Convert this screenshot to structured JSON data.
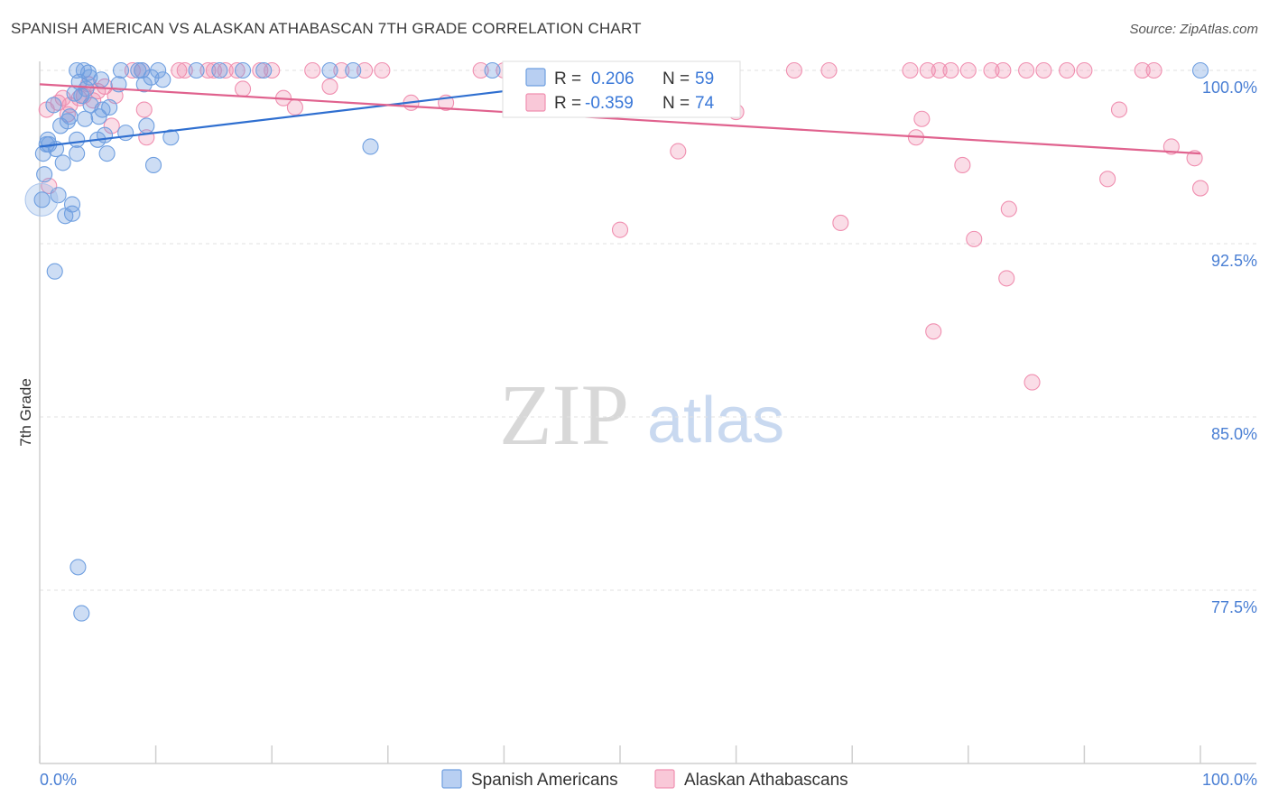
{
  "header": {
    "title": "SPANISH AMERICAN VS ALASKAN ATHABASCAN 7TH GRADE CORRELATION CHART",
    "source": "Source: ZipAtlas.com"
  },
  "watermark": {
    "zip": "ZIP",
    "atlas": "atlas"
  },
  "legend_box": {
    "rows": [
      {
        "r_label": "R =",
        "r_value": "0.206",
        "n_label": "N =",
        "n_value": "59",
        "color": "#6f9fe0"
      },
      {
        "r_label": "R =",
        "r_value": "-0.359",
        "n_label": "N =",
        "n_value": "74",
        "color": "#f08fb0"
      }
    ]
  },
  "bottom_legend": [
    "Spanish Americans",
    "Alaskan Athabascans"
  ],
  "chart_data": {
    "type": "scatter",
    "title": "SPANISH AMERICAN VS ALASKAN ATHABASCAN 7TH GRADE CORRELATION CHART",
    "xlabel": "",
    "ylabel": "7th Grade",
    "xlim": [
      0,
      100
    ],
    "ylim": [
      70.0,
      100.8
    ],
    "x_tick_labels": [
      "0.0%",
      "100.0%"
    ],
    "y_ticks": [
      100.0,
      92.5,
      85.0,
      77.5
    ],
    "y_tick_labels": [
      "100.0%",
      "92.5%",
      "85.0%",
      "77.5%"
    ],
    "grid": true,
    "legend_position": "top-center",
    "series": [
      {
        "name": "Spanish Americans",
        "color": "#6f9fe0",
        "line_color": "#2f6fd0",
        "trend": {
          "x": [
            0,
            55
          ],
          "y": [
            96.7,
            100.0
          ]
        },
        "points": [
          [
            0.2,
            94.4
          ],
          [
            0.3,
            96.4
          ],
          [
            0.4,
            95.5
          ],
          [
            0.6,
            96.8
          ],
          [
            0.7,
            97.0
          ],
          [
            0.8,
            96.8
          ],
          [
            1.2,
            98.5
          ],
          [
            1.4,
            96.6
          ],
          [
            1.6,
            94.6
          ],
          [
            1.8,
            97.6
          ],
          [
            2.0,
            96.0
          ],
          [
            2.2,
            93.7
          ],
          [
            2.4,
            97.8
          ],
          [
            2.6,
            98.0
          ],
          [
            2.8,
            93.8
          ],
          [
            2.8,
            94.2
          ],
          [
            3.0,
            99.0
          ],
          [
            3.2,
            100.0
          ],
          [
            3.2,
            97.0
          ],
          [
            3.2,
            96.4
          ],
          [
            3.4,
            99.5
          ],
          [
            3.6,
            98.9
          ],
          [
            3.8,
            100.0
          ],
          [
            3.9,
            97.9
          ],
          [
            4.0,
            99.2
          ],
          [
            4.2,
            99.9
          ],
          [
            4.3,
            99.7
          ],
          [
            4.4,
            98.5
          ],
          [
            5.0,
            97.0
          ],
          [
            5.1,
            98.0
          ],
          [
            5.3,
            99.6
          ],
          [
            5.4,
            98.3
          ],
          [
            5.6,
            97.2
          ],
          [
            5.8,
            96.4
          ],
          [
            6.0,
            98.4
          ],
          [
            6.8,
            99.4
          ],
          [
            7.0,
            100.0
          ],
          [
            7.4,
            97.3
          ],
          [
            8.5,
            100.0
          ],
          [
            8.8,
            100.0
          ],
          [
            9.0,
            99.4
          ],
          [
            9.2,
            97.6
          ],
          [
            9.6,
            99.7
          ],
          [
            9.8,
            95.9
          ],
          [
            10.2,
            100.0
          ],
          [
            10.6,
            99.6
          ],
          [
            11.3,
            97.1
          ],
          [
            13.5,
            100.0
          ],
          [
            15.5,
            100.0
          ],
          [
            17.5,
            100.0
          ],
          [
            19.3,
            100.0
          ],
          [
            25.0,
            100.0
          ],
          [
            27.0,
            100.0
          ],
          [
            28.5,
            96.7
          ],
          [
            39.0,
            100.0
          ],
          [
            100.0,
            100.0
          ],
          [
            1.3,
            91.3
          ],
          [
            3.3,
            78.5
          ],
          [
            3.6,
            76.5
          ]
        ]
      },
      {
        "name": "Alaskan Athabascans",
        "color": "#f08fb0",
        "line_color": "#e0628e",
        "trend": {
          "x": [
            0,
            100
          ],
          "y": [
            99.4,
            96.4
          ]
        },
        "points": [
          [
            0.6,
            98.3
          ],
          [
            0.8,
            95.0
          ],
          [
            1.6,
            98.6
          ],
          [
            2.0,
            98.8
          ],
          [
            2.4,
            98.1
          ],
          [
            2.6,
            98.5
          ],
          [
            3.4,
            98.8
          ],
          [
            3.8,
            98.9
          ],
          [
            4.2,
            99.4
          ],
          [
            4.6,
            98.7
          ],
          [
            5.0,
            99.1
          ],
          [
            5.6,
            99.3
          ],
          [
            6.2,
            97.6
          ],
          [
            6.5,
            98.9
          ],
          [
            8.0,
            100.0
          ],
          [
            8.8,
            100.0
          ],
          [
            9.0,
            98.3
          ],
          [
            9.2,
            97.1
          ],
          [
            12.0,
            100.0
          ],
          [
            12.5,
            100.0
          ],
          [
            14.5,
            100.0
          ],
          [
            15.0,
            100.0
          ],
          [
            16.0,
            100.0
          ],
          [
            17.0,
            100.0
          ],
          [
            17.5,
            99.2
          ],
          [
            19.0,
            100.0
          ],
          [
            20.0,
            100.0
          ],
          [
            21.0,
            98.8
          ],
          [
            22.0,
            98.4
          ],
          [
            23.5,
            100.0
          ],
          [
            25.0,
            99.3
          ],
          [
            26.0,
            100.0
          ],
          [
            28.0,
            100.0
          ],
          [
            29.5,
            100.0
          ],
          [
            32.0,
            98.6
          ],
          [
            35.0,
            98.6
          ],
          [
            38.0,
            100.0
          ],
          [
            40.0,
            100.0
          ],
          [
            44.0,
            100.0
          ],
          [
            47.0,
            100.0
          ],
          [
            53.0,
            100.0
          ],
          [
            55.0,
            96.5
          ],
          [
            58.0,
            100.0
          ],
          [
            60.0,
            98.2
          ],
          [
            65.0,
            100.0
          ],
          [
            68.0,
            100.0
          ],
          [
            69.0,
            93.4
          ],
          [
            75.0,
            100.0
          ],
          [
            75.5,
            97.1
          ],
          [
            76.0,
            97.9
          ],
          [
            76.5,
            100.0
          ],
          [
            77.5,
            100.0
          ],
          [
            78.5,
            100.0
          ],
          [
            79.5,
            95.9
          ],
          [
            80.0,
            100.0
          ],
          [
            82.0,
            100.0
          ],
          [
            83.0,
            100.0
          ],
          [
            83.5,
            94.0
          ],
          [
            85.0,
            100.0
          ],
          [
            86.5,
            100.0
          ],
          [
            88.5,
            100.0
          ],
          [
            90.0,
            100.0
          ],
          [
            92.0,
            95.3
          ],
          [
            93.0,
            98.3
          ],
          [
            95.0,
            100.0
          ],
          [
            96.0,
            100.0
          ],
          [
            97.5,
            96.7
          ],
          [
            99.5,
            96.2
          ],
          [
            100.0,
            94.9
          ],
          [
            50.0,
            93.1
          ],
          [
            77.0,
            88.7
          ],
          [
            80.5,
            92.7
          ],
          [
            83.3,
            91.0
          ],
          [
            85.5,
            86.5
          ]
        ]
      }
    ]
  }
}
